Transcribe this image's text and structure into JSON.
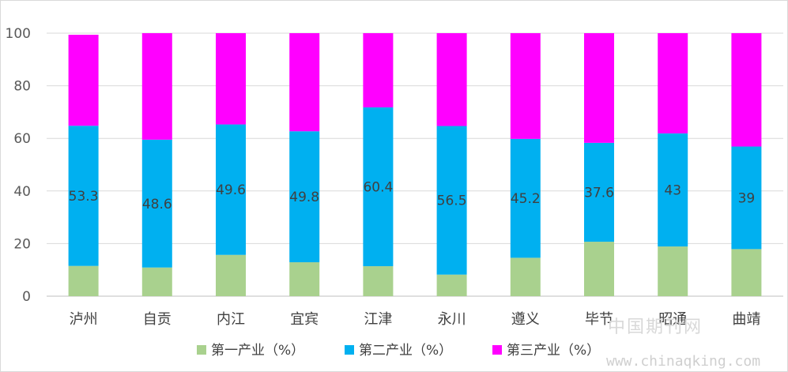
{
  "chart_data": {
    "type": "bar",
    "stacked": true,
    "categories": [
      "泸州",
      "自贡",
      "内江",
      "宜宾",
      "江津",
      "永川",
      "遵义",
      "毕节",
      "昭通",
      "曲靖"
    ],
    "series": [
      {
        "name": "第一产业（%）",
        "color": "#A9D18E",
        "values": [
          11.5,
          10.9,
          15.7,
          12.9,
          11.4,
          8.2,
          14.6,
          20.7,
          18.9,
          17.9
        ]
      },
      {
        "name": "第二产业（%）",
        "color": "#00B0F0",
        "values": [
          53.3,
          48.6,
          49.6,
          49.8,
          60.4,
          56.5,
          45.2,
          37.6,
          43,
          39
        ]
      },
      {
        "name": "第三产业（%）",
        "color": "#FF00FF",
        "values": [
          34.6,
          40.5,
          34.7,
          37.3,
          28.2,
          35.3,
          40.2,
          41.7,
          38.1,
          43.1
        ]
      }
    ],
    "data_labels": [
      "53.3",
      "48.6",
      "49.6",
      "49.8",
      "60.4",
      "56.5",
      "45.2",
      "37.6",
      "43",
      "39"
    ],
    "data_labels_series": "第二产业（%）",
    "ylim": [
      0,
      100
    ],
    "yticks": [
      "0",
      "20",
      "40",
      "60",
      "80",
      "100"
    ],
    "grid": true,
    "legend": "bottom",
    "xlabel": "",
    "ylabel": "",
    "title": ""
  },
  "watermark": {
    "line1": "中国期刊网",
    "line2": "www.chinaqking.com"
  },
  "colors": {
    "grid": "#d9d9d9",
    "axis": "#bfbfbf"
  }
}
